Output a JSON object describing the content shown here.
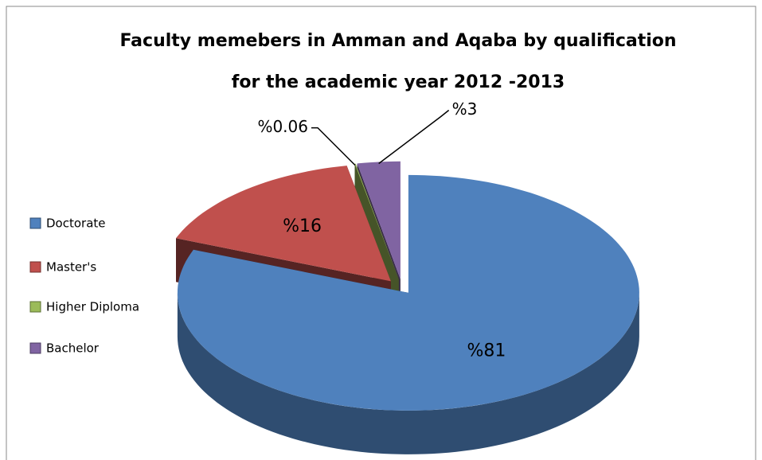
{
  "chart_data": {
    "type": "pie",
    "title": "Faculty memebers in Amman and Aqaba by qualification for the academic year 2012 -2013",
    "categories": [
      "Doctorate",
      "Master's",
      "Higher Diploma",
      "Bachelor"
    ],
    "values": [
      81,
      16,
      0.06,
      3
    ],
    "value_labels": [
      "%81",
      "%16",
      "%0.06",
      "%3"
    ],
    "colors": [
      "#4f81bd",
      "#c0504d",
      "#9bbb59",
      "#8064a2"
    ],
    "legend": "left"
  }
}
